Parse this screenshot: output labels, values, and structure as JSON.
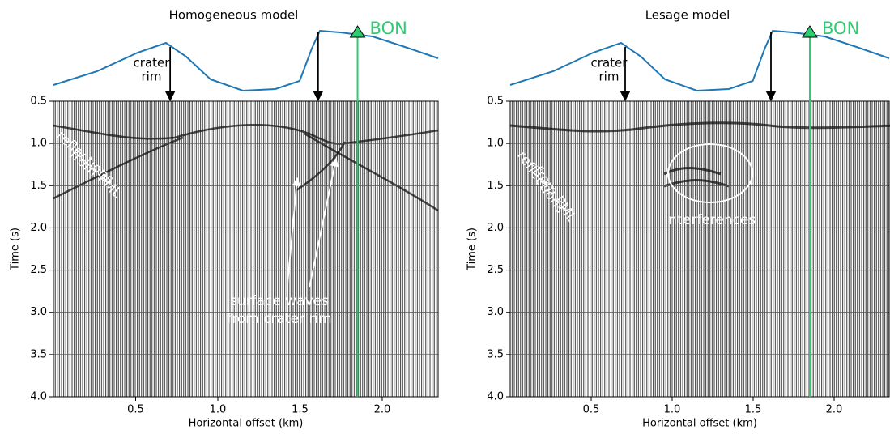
{
  "chart_data": [
    {
      "type": "seismic",
      "title": "Homogeneous model",
      "xlabel": "Horizontal offset (km)",
      "ylabel": "Time (s)",
      "xlim": [
        0,
        2.34
      ],
      "xticks": [
        0.5,
        {
          "value": 1,
          "label": "1.0"
        },
        1.5,
        {
          "value": 2,
          "label": "2.0"
        }
      ],
      "ylim": [
        0.5,
        4
      ],
      "y_inverted": true,
      "yticks": [
        0.5,
        {
          "value": 1,
          "label": "1.0"
        },
        1.5,
        {
          "value": 2,
          "label": "2.0"
        },
        2.5,
        {
          "value": 3,
          "label": "3.0"
        },
        3.5,
        {
          "value": 4,
          "label": "4.0"
        }
      ],
      "grid": true,
      "crater_rim_x": [
        0.71,
        1.61
      ],
      "station": {
        "label": "BON",
        "x": 1.85,
        "color": "#2ecc71"
      },
      "annotations": [
        "crater",
        "rim",
        "reflections",
        "from PML",
        "surface waves",
        "from crater rim"
      ]
    },
    {
      "type": "seismic",
      "title": "Lesage model",
      "xlabel": "Horizontal offset (km)",
      "ylabel": "Time (s)",
      "xlim": [
        0,
        2.34
      ],
      "xticks": [
        0.5,
        {
          "value": 1,
          "label": "1.0"
        },
        1.5,
        {
          "value": 2,
          "label": "2.0"
        }
      ],
      "ylim": [
        0.5,
        4
      ],
      "y_inverted": true,
      "yticks": [
        0.5,
        {
          "value": 1,
          "label": "1.0"
        },
        1.5,
        {
          "value": 2,
          "label": "2.0"
        },
        2.5,
        {
          "value": 3,
          "label": "3.0"
        },
        3.5,
        {
          "value": 4,
          "label": "4.0"
        }
      ],
      "grid": true,
      "crater_rim_x": [
        0.71,
        1.61
      ],
      "station": {
        "label": "BON",
        "x": 1.85,
        "color": "#2ecc71"
      },
      "annotations": [
        "crater",
        "rim",
        "reflections",
        "from PML",
        "interferences"
      ]
    }
  ]
}
